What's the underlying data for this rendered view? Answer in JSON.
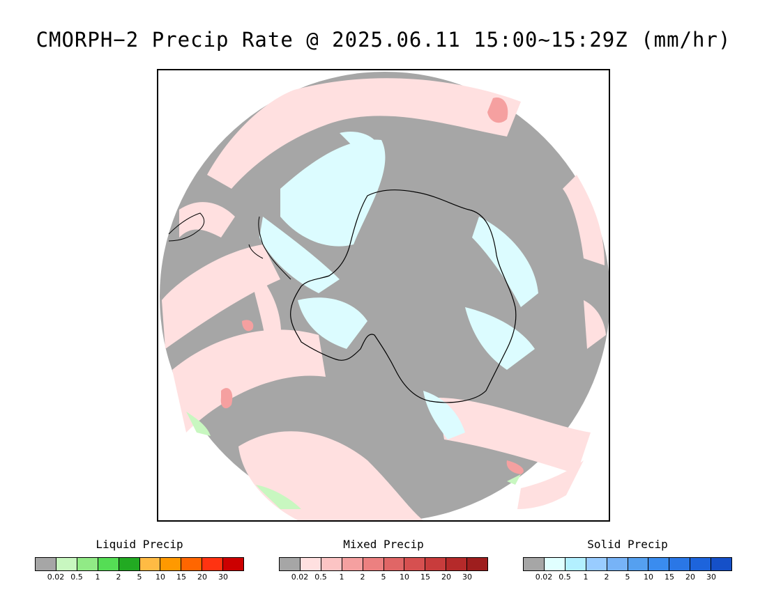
{
  "title": "CMORPH−2 Precip Rate @ 2025.06.11 15:00~15:29Z (mm/hr)",
  "legends": [
    {
      "id": "liquid",
      "title": "Liquid Precip",
      "colors": [
        "#a6a6a6",
        "#c8f7c0",
        "#91ea86",
        "#55dd55",
        "#22aa22",
        "#ffbb44",
        "#ff9900",
        "#ff6600",
        "#ff3311",
        "#cc0000"
      ],
      "ticks": [
        "0.02",
        "0.5",
        "1",
        "2",
        "5",
        "10",
        "15",
        "20",
        "30"
      ]
    },
    {
      "id": "mixed",
      "title": "Mixed Precip",
      "colors": [
        "#a6a6a6",
        "#ffe0e0",
        "#fcc4c4",
        "#f5a0a0",
        "#ec8080",
        "#e06666",
        "#d65050",
        "#c83c3c",
        "#b52a2a",
        "#9e1e1e"
      ],
      "ticks": [
        "0.02",
        "0.5",
        "1",
        "2",
        "5",
        "10",
        "15",
        "20",
        "30"
      ]
    },
    {
      "id": "solid",
      "title": "Solid Precip",
      "colors": [
        "#a6a6a6",
        "#e0ffff",
        "#b3f0ff",
        "#99ccff",
        "#77b3f7",
        "#55a0f0",
        "#3a8cef",
        "#2a77e6",
        "#1d64dc",
        "#1550c8"
      ],
      "ticks": [
        "0.02",
        "0.5",
        "1",
        "2",
        "5",
        "10",
        "15",
        "20",
        "30"
      ]
    }
  ],
  "map": {
    "projection": "south polar stereographic",
    "background_color": "#a6a6a6",
    "mixed_light_color": "#ffe0e0",
    "mixed_medium_color": "#f5a0a0",
    "solid_light_color": "#dcfcff",
    "liquid_light_color": "#c8f7c0",
    "coastline_color": "#000000"
  }
}
